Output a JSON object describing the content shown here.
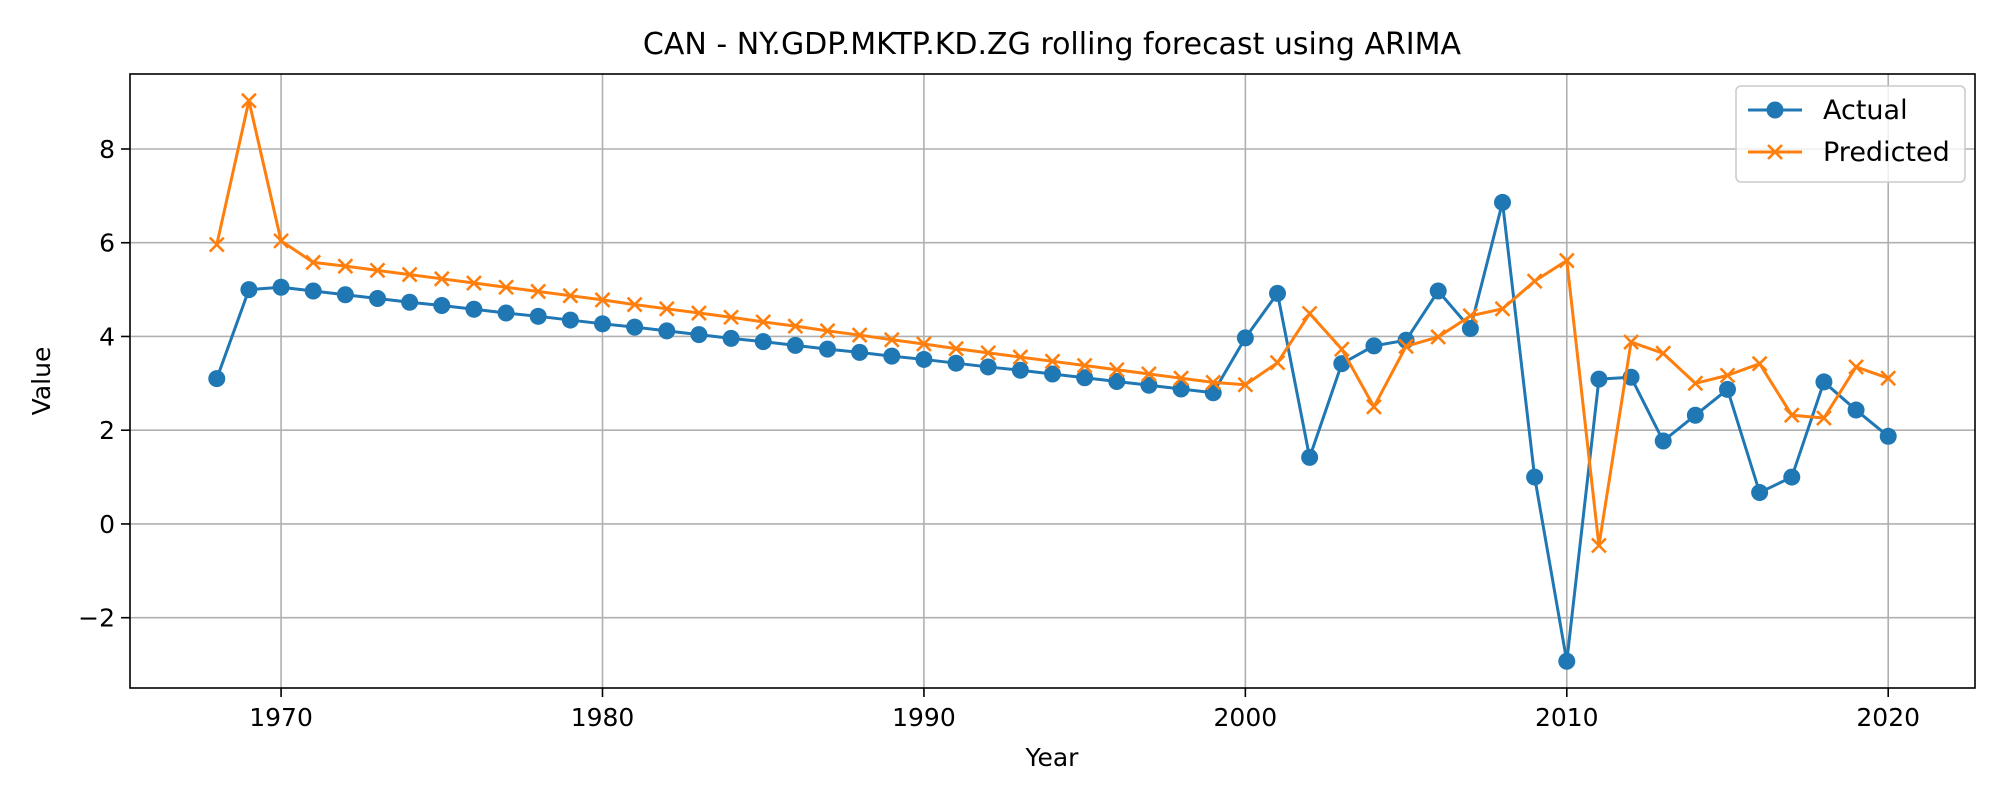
{
  "chart_data": {
    "type": "line",
    "title": "CAN - NY.GDP.MKTP.KD.ZG rolling forecast using ARIMA",
    "xlabel": "Year",
    "ylabel": "Value",
    "xlim": [
      1965.3,
      2022.7
    ],
    "ylim": [
      -3.5,
      9.6
    ],
    "xticks": [
      1970,
      1980,
      1990,
      2000,
      2010,
      2020
    ],
    "yticks": [
      -2,
      0,
      2,
      4,
      6,
      8
    ],
    "ytick_labels": [
      "−2",
      "0",
      "2",
      "4",
      "6",
      "8"
    ],
    "grid": true,
    "legend_position": "top-right",
    "x": [
      1968,
      1969,
      1970,
      1971,
      1972,
      1973,
      1974,
      1975,
      1976,
      1977,
      1978,
      1979,
      1980,
      1981,
      1982,
      1983,
      1984,
      1985,
      1986,
      1987,
      1988,
      1989,
      1990,
      1991,
      1992,
      1993,
      1994,
      1995,
      1996,
      1997,
      1998,
      1999,
      2000,
      2001,
      2002,
      2003,
      2004,
      2005,
      2006,
      2007,
      2008,
      2009,
      2010,
      2011,
      2012,
      2013,
      2014,
      2015,
      2016,
      2017,
      2018,
      2019,
      2020
    ],
    "series": [
      {
        "name": "Actual",
        "color": "#1f77b4",
        "marker": "circle",
        "values": [
          3.1,
          5.0,
          5.05,
          4.97,
          4.89,
          4.81,
          4.73,
          4.66,
          4.58,
          4.5,
          4.43,
          4.35,
          4.27,
          4.2,
          4.12,
          4.04,
          3.96,
          3.89,
          3.81,
          3.73,
          3.66,
          3.58,
          3.51,
          3.43,
          3.35,
          3.28,
          3.2,
          3.12,
          3.04,
          2.96,
          2.88,
          2.8,
          3.97,
          4.92,
          1.42,
          3.42,
          3.8,
          3.92,
          4.97,
          4.17,
          6.86,
          1.0,
          -2.93,
          3.09,
          3.13,
          1.77,
          2.32,
          2.87,
          0.67,
          1.0,
          3.03,
          2.43,
          1.87
        ]
      },
      {
        "name": "Predicted",
        "color": "#ff7f0e",
        "marker": "x",
        "values": [
          5.96,
          9.03,
          6.04,
          5.58,
          5.5,
          5.41,
          5.32,
          5.23,
          5.14,
          5.05,
          4.96,
          4.87,
          4.78,
          4.68,
          4.59,
          4.5,
          4.41,
          4.31,
          4.22,
          4.12,
          4.03,
          3.93,
          3.84,
          3.74,
          3.65,
          3.56,
          3.47,
          3.38,
          3.29,
          3.2,
          3.11,
          3.02,
          2.97,
          3.44,
          4.49,
          3.73,
          2.5,
          3.79,
          3.99,
          4.44,
          4.59,
          5.18,
          5.62,
          -0.46,
          3.88,
          3.64,
          3.0,
          3.17,
          3.42,
          2.32,
          2.26,
          3.35,
          3.11
        ]
      }
    ]
  }
}
